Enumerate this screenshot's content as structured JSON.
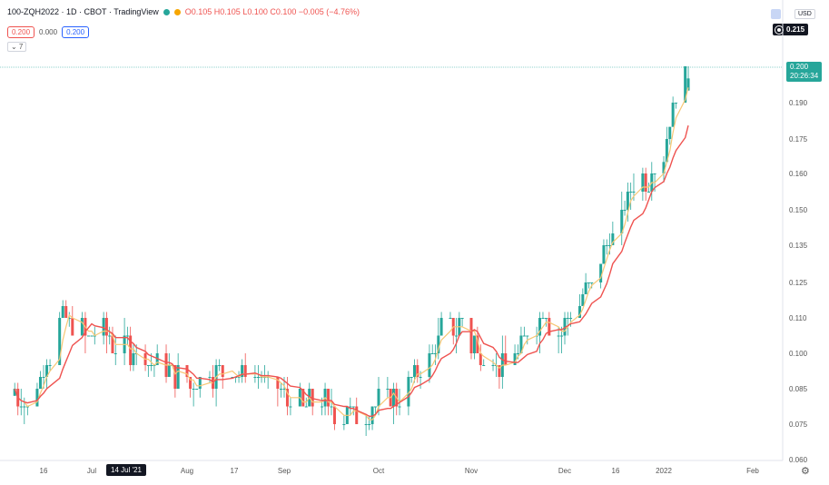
{
  "header": {
    "symbol": "100-ZQH2022 · 1D · CBOT · TradingView",
    "badge": "D",
    "open": "O0.105",
    "high": "H0.105",
    "low": "L0.100",
    "close": "C0.100",
    "change": "−0.005 (−4.76%)"
  },
  "quote": {
    "bid": "0.200",
    "spread": "0.000",
    "ask": "0.200"
  },
  "indicators_toggle": "⌄ 7",
  "currency": "USD",
  "crosshair_price": "0.215",
  "last_price": {
    "value": "0.200",
    "countdown": "20:26:34"
  },
  "date_badge": "14 Jul '21",
  "colors": {
    "up": "#26a69a",
    "down": "#ef5350",
    "ma_slow": "#ef5350",
    "ma_fast": "#f7c775"
  },
  "chart_data": {
    "type": "candlestick",
    "title": "100-ZQH2022 · 1D · CBOT · TradingView",
    "ylim": [
      0.06,
      0.215
    ],
    "y_ticks": [
      "0.190",
      "0.175",
      "0.160",
      "0.150",
      "0.135",
      "0.125",
      "0.110",
      "0.100",
      "0.085",
      "0.075",
      "0.060"
    ],
    "x_ticks": [
      "16",
      "Jul",
      "14 Jul '21",
      "Aug",
      "17",
      "Sep",
      "Oct",
      "Nov",
      "Dec",
      "16",
      "2022",
      "Feb"
    ],
    "grid": false,
    "series": [
      {
        "name": "price",
        "anchors": [
          {
            "date": "2021-06-07",
            "close": 0.083
          },
          {
            "date": "2021-06-11",
            "close": 0.081
          },
          {
            "date": "2021-06-16",
            "close": 0.093
          },
          {
            "date": "2021-06-21",
            "close": 0.11
          },
          {
            "date": "2021-06-25",
            "close": 0.106
          },
          {
            "date": "2021-07-01",
            "close": 0.106
          },
          {
            "date": "2021-07-09",
            "close": 0.102
          },
          {
            "date": "2021-07-16",
            "close": 0.1
          },
          {
            "date": "2021-07-26",
            "close": 0.093
          },
          {
            "date": "2021-08-03",
            "close": 0.087
          },
          {
            "date": "2021-08-11",
            "close": 0.092
          },
          {
            "date": "2021-08-23",
            "close": 0.092
          },
          {
            "date": "2021-08-31",
            "close": 0.083
          },
          {
            "date": "2021-09-10",
            "close": 0.08
          },
          {
            "date": "2021-09-24",
            "close": 0.079
          },
          {
            "date": "2021-09-30",
            "close": 0.08
          },
          {
            "date": "2021-10-07",
            "close": 0.083
          },
          {
            "date": "2021-10-15",
            "close": 0.095
          },
          {
            "date": "2021-10-22",
            "close": 0.106
          },
          {
            "date": "2021-10-29",
            "close": 0.108
          },
          {
            "date": "2021-11-03",
            "close": 0.101
          },
          {
            "date": "2021-11-10",
            "close": 0.094
          },
          {
            "date": "2021-11-17",
            "close": 0.102
          },
          {
            "date": "2021-11-24",
            "close": 0.111
          },
          {
            "date": "2021-12-01",
            "close": 0.107
          },
          {
            "date": "2021-12-08",
            "close": 0.121
          },
          {
            "date": "2021-12-15",
            "close": 0.135
          },
          {
            "date": "2021-12-22",
            "close": 0.154
          },
          {
            "date": "2021-12-29",
            "close": 0.16
          },
          {
            "date": "2022-01-03",
            "close": 0.168
          },
          {
            "date": "2022-01-07",
            "close": 0.195
          },
          {
            "date": "2022-01-11",
            "close": 0.2
          }
        ]
      },
      {
        "name": "ma_fast"
      },
      {
        "name": "ma_slow"
      }
    ]
  }
}
